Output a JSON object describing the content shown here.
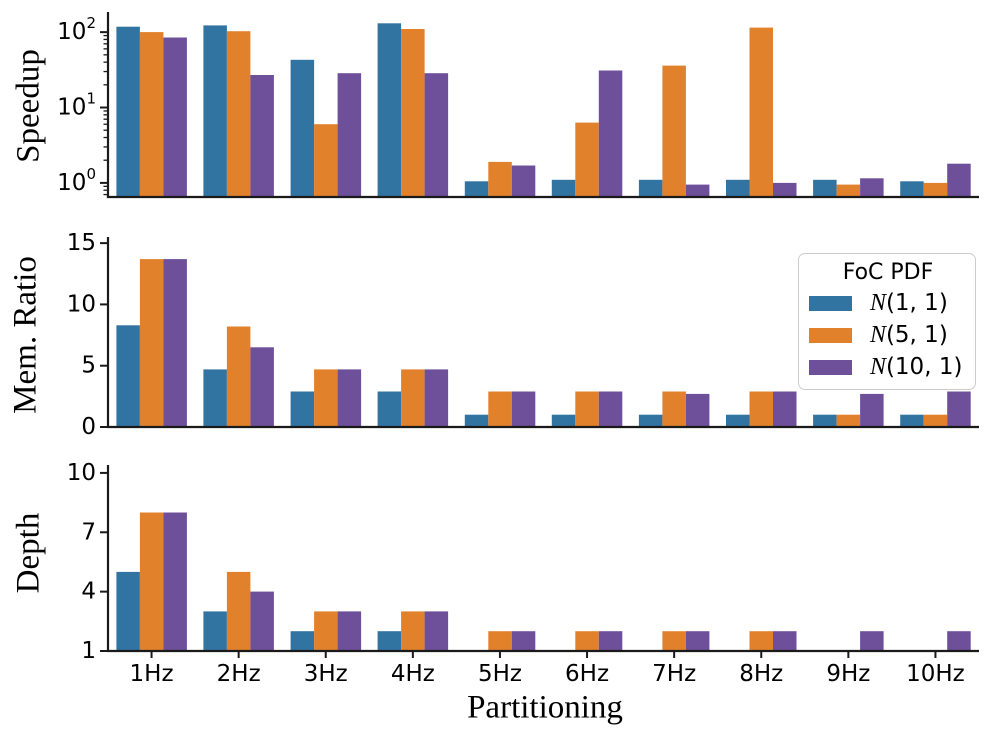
{
  "figure": {
    "xlabel": "Partitioning",
    "background": "#ffffff",
    "text_color": "#000000",
    "spine_color": "#1a1a1a"
  },
  "legend": {
    "title": "FoC PDF",
    "position": "upper-right-of-middle-subplot",
    "entries": [
      {
        "label": "𝒩(1, 1)",
        "color": "#3274a1"
      },
      {
        "label": "𝒩(5, 1)",
        "color": "#e1812c"
      },
      {
        "label": "𝒩(10, 1)",
        "color": "#6d4f9a"
      }
    ]
  },
  "chart_data": [
    {
      "type": "bar",
      "ylabel": "Speedup",
      "yscale": "log",
      "ytick_exponents": [
        0,
        1,
        2
      ],
      "ylim": [
        0.65,
        185
      ],
      "grid": false,
      "categories": [
        "1Hz",
        "2Hz",
        "3Hz",
        "4Hz",
        "5Hz",
        "6Hz",
        "7Hz",
        "8Hz",
        "9Hz",
        "10Hz"
      ],
      "series": [
        {
          "name": "𝒩(1, 1)",
          "color": "#3274a1",
          "values": [
            118,
            123,
            43,
            131,
            1.05,
            1.1,
            1.1,
            1.1,
            1.1,
            1.05
          ]
        },
        {
          "name": "𝒩(5, 1)",
          "color": "#e1812c",
          "values": [
            100,
            103,
            6,
            110,
            1.9,
            6.3,
            36,
            115,
            0.95,
            1.0
          ]
        },
        {
          "name": "𝒩(10, 1)",
          "color": "#6d4f9a",
          "values": [
            85,
            27,
            28.5,
            28.5,
            1.7,
            31,
            0.95,
            1.0,
            1.15,
            1.8
          ]
        }
      ]
    },
    {
      "type": "bar",
      "ylabel": "Mem. Ratio",
      "yscale": "linear",
      "yticks": [
        0,
        5,
        10,
        15
      ],
      "ylim": [
        0,
        15.5
      ],
      "grid": false,
      "categories": [
        "1Hz",
        "2Hz",
        "3Hz",
        "4Hz",
        "5Hz",
        "6Hz",
        "7Hz",
        "8Hz",
        "9Hz",
        "10Hz"
      ],
      "series": [
        {
          "name": "𝒩(1, 1)",
          "color": "#3274a1",
          "values": [
            8.3,
            4.7,
            2.9,
            2.9,
            1.0,
            1.0,
            1.0,
            1.0,
            1.0,
            1.0
          ]
        },
        {
          "name": "𝒩(5, 1)",
          "color": "#e1812c",
          "values": [
            13.7,
            8.2,
            4.7,
            4.7,
            2.9,
            2.9,
            2.9,
            2.9,
            1.0,
            1.0
          ]
        },
        {
          "name": "𝒩(10, 1)",
          "color": "#6d4f9a",
          "values": [
            13.7,
            6.5,
            4.7,
            4.7,
            2.9,
            2.9,
            2.7,
            2.9,
            2.7,
            2.9
          ]
        }
      ]
    },
    {
      "type": "bar",
      "ylabel": "Depth",
      "yscale": "linear",
      "yticks": [
        1,
        4,
        7,
        10
      ],
      "ylim": [
        1,
        10.4
      ],
      "grid": false,
      "categories": [
        "1Hz",
        "2Hz",
        "3Hz",
        "4Hz",
        "5Hz",
        "6Hz",
        "7Hz",
        "8Hz",
        "9Hz",
        "10Hz"
      ],
      "series": [
        {
          "name": "𝒩(1, 1)",
          "color": "#3274a1",
          "values": [
            5,
            3,
            2,
            2,
            1,
            1,
            1,
            1,
            1,
            1
          ]
        },
        {
          "name": "𝒩(5, 1)",
          "color": "#e1812c",
          "values": [
            8,
            5,
            3,
            3,
            2,
            2,
            2,
            2,
            1,
            1
          ]
        },
        {
          "name": "𝒩(10, 1)",
          "color": "#6d4f9a",
          "values": [
            8,
            4,
            3,
            3,
            2,
            2,
            2,
            2,
            2,
            2
          ]
        }
      ]
    }
  ]
}
